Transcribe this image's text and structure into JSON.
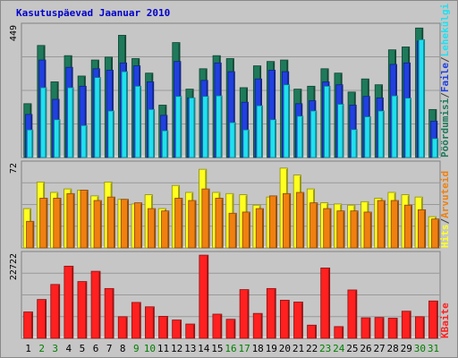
{
  "chart_data": {
    "type": "bar",
    "title": "Kasutuspäevad Jaanuar 2010",
    "categories": [
      "1",
      "2",
      "3",
      "4",
      "5",
      "6",
      "7",
      "8",
      "9",
      "10",
      "11",
      "12",
      "13",
      "14",
      "15",
      "16",
      "17",
      "18",
      "19",
      "20",
      "21",
      "22",
      "23",
      "24",
      "25",
      "26",
      "27",
      "28",
      "29",
      "30",
      "31"
    ],
    "weekend_days": [
      "2",
      "3",
      "9",
      "10",
      "16",
      "17",
      "23",
      "24",
      "30",
      "31"
    ],
    "colors": {
      "Pöördumisi": "#1e7a5a",
      "Faile": "#2040e0",
      "Lehekülgi": "#20e0f0",
      "Hits": "#ffff20",
      "Arvuteid": "#f08010",
      "KBaite": "#ff2020",
      "weekday_label": "#000000",
      "weekend_label": "#008000"
    },
    "panels": [
      {
        "ylim": [
          0,
          449
        ],
        "max_label": "449",
        "series": [
          {
            "name": "Pöördumisi",
            "values": [
              185,
              385,
              260,
              350,
              280,
              335,
              345,
              420,
              340,
              290,
              180,
              395,
              235,
              305,
              350,
              340,
              240,
              315,
              330,
              335,
              235,
              245,
              305,
              290,
              225,
              270,
              250,
              370,
              380,
              445,
              165
            ]
          },
          {
            "name": "Faile",
            "values": [
              148,
              335,
              200,
              310,
              245,
              305,
              300,
              325,
              315,
              260,
              145,
              330,
              205,
              265,
              325,
              295,
              190,
              270,
              300,
              295,
              185,
              195,
              260,
              250,
              180,
              210,
              205,
              320,
              325,
              400,
              125
            ]
          },
          {
            "name": "Lehekülgi",
            "values": [
              95,
              240,
              130,
              240,
              110,
              275,
              160,
              295,
              245,
              165,
              92,
              210,
              205,
              210,
              212,
              120,
              95,
              178,
              130,
              250,
              142,
              160,
              245,
              183,
              96,
              140,
              160,
              212,
              204,
              405,
              65
            ]
          }
        ]
      },
      {
        "ylim": [
          0,
          72
        ],
        "max_label": "72",
        "series": [
          {
            "name": "Hits",
            "values": [
              34,
              57,
              48,
              51,
              50,
              45,
              57,
              42,
              38,
              46,
              34,
              54,
              48,
              68,
              48,
              47,
              46,
              37,
              44,
              69,
              63,
              51,
              39,
              38,
              37,
              40,
              43,
              48,
              46,
              44,
              27
            ]
          },
          {
            "name": "Arvuteid",
            "values": [
              23,
              43,
              43,
              47,
              50,
              41,
              44,
              42,
              39,
              34,
              32,
              43,
              41,
              51,
              43,
              30,
              31,
              34,
              45,
              47,
              48,
              39,
              34,
              32,
              32,
              31,
              41,
              41,
              37,
              33,
              25
            ]
          }
        ]
      },
      {
        "ylim": [
          0,
          22722
        ],
        "max_label": "22722",
        "series": [
          {
            "name": "KBaite",
            "values": [
              7200,
              10600,
              14700,
              19700,
              15500,
              18300,
              13600,
              5900,
              9800,
              8600,
              6000,
              5000,
              3900,
              22700,
              6600,
              5200,
              13300,
              6800,
              13600,
              10400,
              9900,
              3600,
              19200,
              3200,
              13200,
              5600,
              5700,
              5500,
              7400,
              5900,
              10200
            ]
          }
        ]
      }
    ],
    "legend": {
      "top": [
        {
          "label": "Pöördumisi",
          "color": "#1e7a5a"
        },
        {
          "label": "/",
          "color": "#404040"
        },
        {
          "label": "Faile",
          "color": "#2040e0"
        },
        {
          "label": "/",
          "color": "#404040"
        },
        {
          "label": "Lehekülgi",
          "color": "#20e0f0"
        }
      ],
      "middle": [
        {
          "label": "Hits",
          "color": "#ffff20"
        },
        {
          "label": "/",
          "color": "#404040"
        },
        {
          "label": "Arvuteid",
          "color": "#f08010"
        }
      ],
      "bottom": [
        {
          "label": "KBaite",
          "color": "#ff2020"
        }
      ]
    }
  }
}
